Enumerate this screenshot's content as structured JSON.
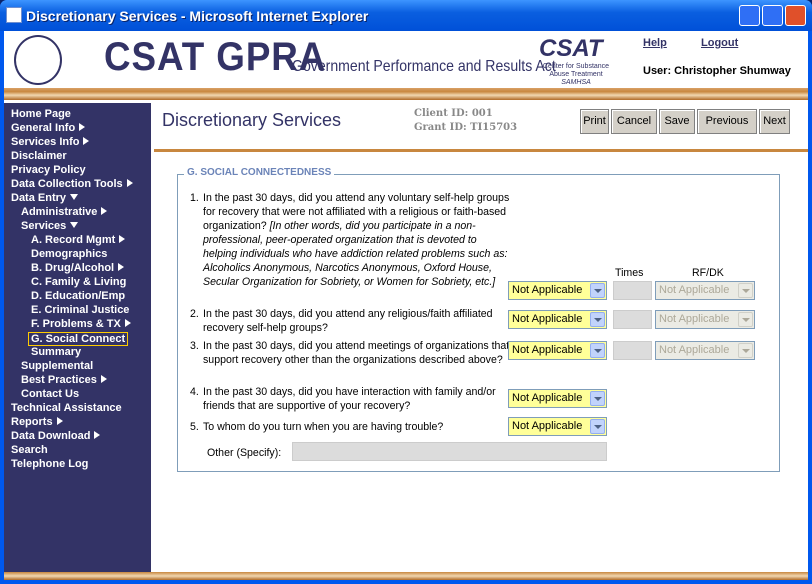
{
  "window": {
    "title": "Discretionary Services - Microsoft Internet Explorer"
  },
  "header": {
    "title": "CSAT GPRA",
    "subtitle": "Government Performance and Results Act",
    "logo": {
      "title": "CSAT",
      "lines": [
        "Center for Substance",
        "Abuse Treatment",
        "SAMHSA"
      ]
    },
    "links": [
      "Help",
      "Logout"
    ],
    "user": "User: Christopher Shumway"
  },
  "nav": [
    {
      "label": "Home Page",
      "level": 0
    },
    {
      "label": "General Info",
      "level": 0,
      "arrow": "right"
    },
    {
      "label": "Services Info",
      "level": 0,
      "arrow": "right"
    },
    {
      "label": "Disclaimer",
      "level": 0
    },
    {
      "label": "Privacy Policy",
      "level": 0
    },
    {
      "label": "Data Collection Tools",
      "level": 0,
      "arrow": "right"
    },
    {
      "label": "Data Entry",
      "level": 0,
      "arrow": "down"
    },
    {
      "label": "Administrative",
      "level": 1,
      "arrow": "right"
    },
    {
      "label": "Services",
      "level": 1,
      "arrow": "down"
    },
    {
      "label": "A. Record Mgmt",
      "level": 2,
      "arrow": "right"
    },
    {
      "label": "Demographics",
      "level": 2
    },
    {
      "label": "B. Drug/Alcohol",
      "level": 2,
      "arrow": "right"
    },
    {
      "label": "C. Family & Living",
      "level": 2
    },
    {
      "label": "D. Education/Emp",
      "level": 2
    },
    {
      "label": "E. Criminal Justice",
      "level": 2
    },
    {
      "label": "F. Problems & TX",
      "level": 2,
      "arrow": "right"
    },
    {
      "label": "G. Social Connect",
      "level": 2,
      "selected": true
    },
    {
      "label": "Summary",
      "level": 2
    },
    {
      "label": "Supplemental",
      "level": 1
    },
    {
      "label": "Best Practices",
      "level": 1,
      "arrow": "right"
    },
    {
      "label": "Contact Us",
      "level": 1
    },
    {
      "label": "Technical Assistance",
      "level": 0
    },
    {
      "label": "Reports",
      "level": 0,
      "arrow": "right"
    },
    {
      "label": "Data Download",
      "level": 0,
      "arrow": "right"
    },
    {
      "label": "Search",
      "level": 0
    },
    {
      "label": "Telephone Log",
      "level": 0
    }
  ],
  "page": {
    "title": "Discretionary Services",
    "client_id": "Client ID: 001",
    "grant_id": "Grant ID: TI15703",
    "buttons": [
      "Print",
      "Cancel",
      "Save",
      "Previous",
      "Next"
    ]
  },
  "section": {
    "title": "G. SOCIAL CONNECTEDNESS",
    "columns": [
      "Times",
      "RF/DK"
    ],
    "questions": [
      {
        "number": "1.",
        "text": "In the past 30 days, did you attend any voluntary self-help groups for recovery that were not affiliated with a religious or faith-based organization?",
        "note": "[In other words, did you participate in a non-professional, peer-operated organization that is devoted to helping individuals who have addiction related problems such as: Alcoholics Anonymous, Narcotics Anonymous, Oxford House, Secular Organization for Sobriety, or Women for Sobriety, etc.]",
        "answer": "Not Applicable",
        "rf_dk": "Not Applicable"
      },
      {
        "number": "2.",
        "text": "In the past 30 days, did you attend any religious/faith affiliated recovery self-help groups?",
        "answer": "Not Applicable",
        "rf_dk": "Not Applicable"
      },
      {
        "number": "3.",
        "text": "In the past 30 days, did you attend meetings of organizations that support recovery other than the organizations described above?",
        "answer": "Not Applicable",
        "rf_dk": "Not Applicable"
      },
      {
        "number": "4.",
        "text": "In the past 30 days, did you have interaction with family and/or friends that are supportive of your recovery?",
        "answer": "Not Applicable"
      },
      {
        "number": "5.",
        "text": "To whom do you turn when you are having trouble?",
        "answer": "Not Applicable"
      }
    ],
    "other_label": "Other (Specify):"
  }
}
